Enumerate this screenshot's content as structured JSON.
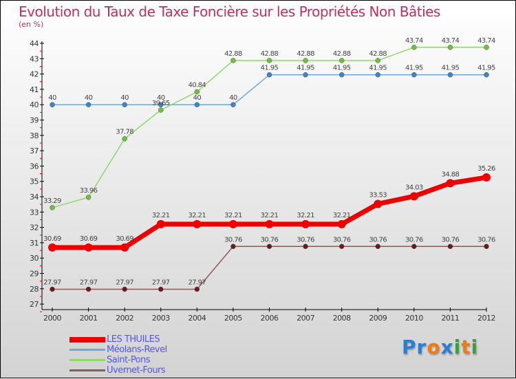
{
  "chart_data": {
    "type": "line",
    "title": "Evolution du Taux de Taxe Foncière sur les Propriétés Non Bâties",
    "ylabel": "(en %)",
    "xlabel": "",
    "x": [
      "2000",
      "2001",
      "2002",
      "2003",
      "2004",
      "2005",
      "2006",
      "2007",
      "2008",
      "2009",
      "2010",
      "2011",
      "2012"
    ],
    "ylim": [
      27,
      44
    ],
    "yticks": [
      27,
      28,
      29,
      30,
      31,
      32,
      33,
      34,
      35,
      36,
      37,
      38,
      39,
      40,
      41,
      42,
      43,
      44
    ],
    "legend_position": "bottom-left",
    "series": [
      {
        "name": "LES THUILES",
        "color": "#ee0000",
        "width": 7,
        "values": [
          30.69,
          30.69,
          30.69,
          32.21,
          32.21,
          32.21,
          32.21,
          32.21,
          32.21,
          33.53,
          34.03,
          34.88,
          35.26
        ]
      },
      {
        "name": "Méolans-Revel",
        "color": "#6fa8d6",
        "width": 1.5,
        "values": [
          40,
          40,
          40,
          40,
          40,
          40,
          41.95,
          41.95,
          41.95,
          41.95,
          41.95,
          41.95,
          41.95
        ]
      },
      {
        "name": "Saint-Pons",
        "color": "#8fd86a",
        "width": 1.5,
        "values": [
          33.29,
          33.96,
          37.78,
          39.65,
          40.84,
          42.88,
          42.88,
          42.88,
          42.88,
          42.88,
          43.74,
          43.74,
          43.74
        ]
      },
      {
        "name": "Uvernet-Fours",
        "color": "#8b5a5a",
        "width": 1.5,
        "values": [
          27.97,
          27.97,
          27.97,
          27.97,
          27.97,
          30.76,
          30.76,
          30.76,
          30.76,
          30.76,
          30.76,
          30.76,
          30.76
        ]
      }
    ],
    "value_labels": [
      [
        "30.69",
        "30.69",
        "30.69",
        "32.21",
        "32.21",
        "32.21",
        "32.21",
        "32.21",
        "32.21",
        "33.53",
        "34.03",
        "34.88",
        "35.26"
      ],
      [
        "40",
        "40",
        "40",
        "40",
        "40",
        "40",
        "41.95",
        "41.95",
        "41.95",
        "41.95",
        "41.95",
        "41.95",
        "41.95"
      ],
      [
        "33.29",
        "33.96",
        "37.78",
        "39.65",
        "40.84",
        "42.88",
        "42.88",
        "42.88",
        "42.88",
        "42.88",
        "43.74",
        "43.74",
        "43.74"
      ],
      [
        "27.97",
        "27.97",
        "27.97",
        "27.97",
        "27.97",
        "30.76",
        "30.76",
        "30.76",
        "30.76",
        "30.76",
        "30.76",
        "30.76",
        "30.76"
      ]
    ]
  },
  "logo": {
    "letters": [
      "P",
      "r",
      "o",
      "x",
      "i",
      "t",
      "i"
    ],
    "colors": [
      "#2a7fd4",
      "#2a7fd4",
      "#f07a10",
      "#2a7fd4",
      "#3aa03a",
      "#f07a10",
      "#3aa03a"
    ]
  }
}
